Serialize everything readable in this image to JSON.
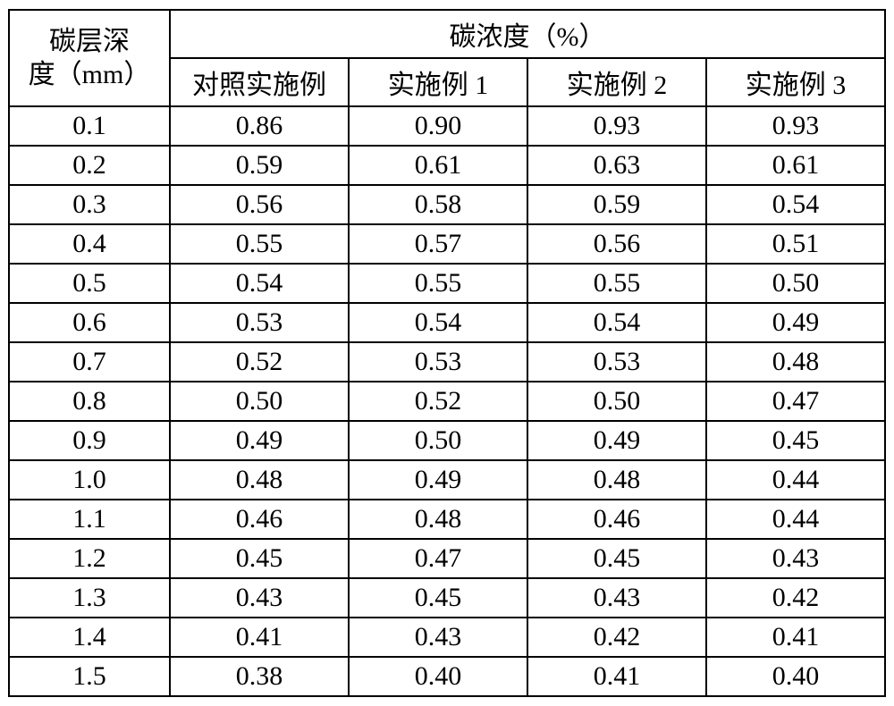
{
  "table": {
    "type": "table",
    "row_header_title_line1": "碳层深",
    "row_header_title_line2": "度（mm）",
    "group_header": "碳浓度（%）",
    "columns": [
      "对照实施例",
      "实施例 1",
      "实施例 2",
      "实施例 3"
    ],
    "rows": [
      {
        "depth": "0.1",
        "values": [
          "0.86",
          "0.90",
          "0.93",
          "0.93"
        ]
      },
      {
        "depth": "0.2",
        "values": [
          "0.59",
          "0.61",
          "0.63",
          "0.61"
        ]
      },
      {
        "depth": "0.3",
        "values": [
          "0.56",
          "0.58",
          "0.59",
          "0.54"
        ]
      },
      {
        "depth": "0.4",
        "values": [
          "0.55",
          "0.57",
          "0.56",
          "0.51"
        ]
      },
      {
        "depth": "0.5",
        "values": [
          "0.54",
          "0.55",
          "0.55",
          "0.50"
        ]
      },
      {
        "depth": "0.6",
        "values": [
          "0.53",
          "0.54",
          "0.54",
          "0.49"
        ]
      },
      {
        "depth": "0.7",
        "values": [
          "0.52",
          "0.53",
          "0.53",
          "0.48"
        ]
      },
      {
        "depth": "0.8",
        "values": [
          "0.50",
          "0.52",
          "0.50",
          "0.47"
        ]
      },
      {
        "depth": "0.9",
        "values": [
          "0.49",
          "0.50",
          "0.49",
          "0.45"
        ]
      },
      {
        "depth": "1.0",
        "values": [
          "0.48",
          "0.49",
          "0.48",
          "0.44"
        ]
      },
      {
        "depth": "1.1",
        "values": [
          "0.46",
          "0.48",
          "0.46",
          "0.44"
        ]
      },
      {
        "depth": "1.2",
        "values": [
          "0.45",
          "0.47",
          "0.45",
          "0.43"
        ]
      },
      {
        "depth": "1.3",
        "values": [
          "0.43",
          "0.45",
          "0.43",
          "0.42"
        ]
      },
      {
        "depth": "1.4",
        "values": [
          "0.41",
          "0.43",
          "0.42",
          "0.41"
        ]
      },
      {
        "depth": "1.5",
        "values": [
          "0.38",
          "0.40",
          "0.41",
          "0.40"
        ]
      }
    ],
    "border_color": "#000000",
    "background_color": "#ffffff",
    "font_size_pt": 22
  }
}
